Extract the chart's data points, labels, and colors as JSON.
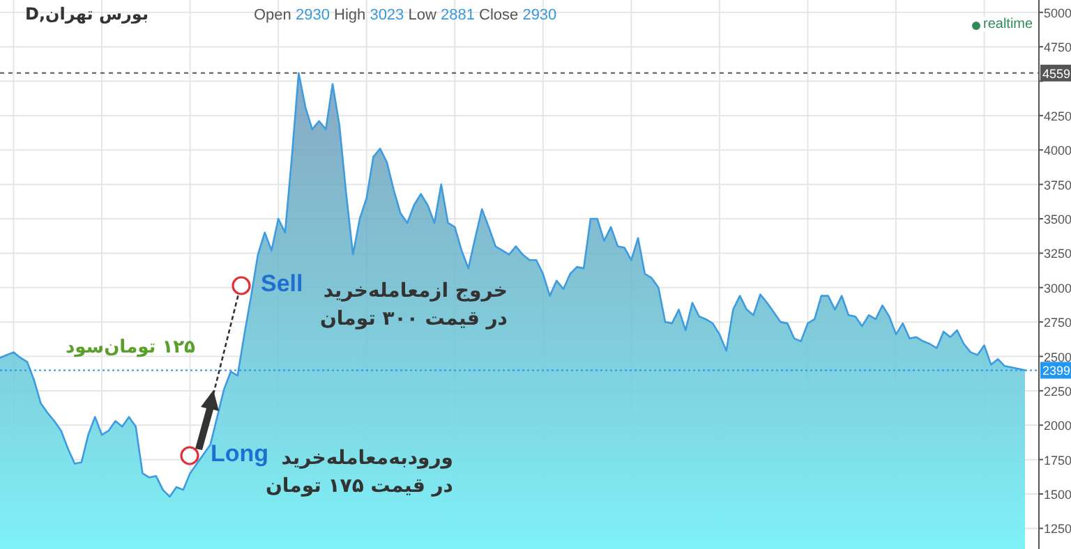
{
  "chart_data": {
    "type": "area",
    "title": "بورس تهران,D",
    "subtitle": "Open 2930 High 3023 Low 2881 Close 2930",
    "annotations": [
      "Long",
      "Sell",
      "ورود‌به‌معامله‌خرید",
      "در قیمت ۱۷۵ تومان",
      "خروج از‌معامله‌خرید",
      "در قیمت ۳۰۰ تومان",
      "۱۲۵ تومان‌سود",
      "realtime"
    ],
    "categories": [
      null,
      null,
      null,
      null,
      null,
      null,
      null,
      null,
      null,
      null,
      null,
      null,
      null,
      null,
      null,
      null,
      null,
      null,
      null,
      null,
      null,
      null,
      null,
      null,
      null,
      null,
      null,
      null,
      null,
      null,
      null,
      null,
      null,
      null,
      null,
      null,
      null,
      null,
      null,
      null,
      null,
      null,
      null,
      null,
      null,
      null,
      null,
      null,
      null,
      null,
      null,
      null,
      null,
      null,
      null,
      null,
      null,
      null,
      null,
      null,
      null,
      null,
      null,
      null,
      null,
      null,
      null,
      null,
      null,
      null,
      null,
      null,
      null,
      null,
      null,
      null,
      null,
      null,
      null,
      null,
      null,
      null,
      null,
      null,
      null,
      null,
      null,
      null,
      null,
      null,
      null,
      null,
      null,
      null,
      null,
      null,
      null,
      null,
      null,
      null,
      null,
      null,
      null,
      null,
      null,
      null,
      null,
      null,
      null,
      null,
      null,
      null,
      null,
      null,
      null,
      null,
      null,
      null,
      null,
      null,
      null,
      null,
      null,
      null,
      null,
      null,
      null,
      null,
      null,
      null,
      null,
      null,
      null,
      null,
      null,
      null,
      null,
      null,
      null,
      null,
      null,
      null,
      null,
      null,
      null,
      null,
      null,
      null,
      null,
      null,
      null,
      null
    ],
    "values": [
      2490,
      2510,
      2530,
      2490,
      2460,
      2330,
      2160,
      2090,
      2030,
      1960,
      1830,
      1720,
      1730,
      1930,
      2060,
      1930,
      1960,
      2030,
      1990,
      2060,
      1990,
      1650,
      1620,
      1630,
      1530,
      1480,
      1550,
      1530,
      1650,
      1720,
      1790,
      1860,
      2060,
      2260,
      2390,
      2360,
      2660,
      2940,
      3240,
      3400,
      3270,
      3500,
      3400,
      3950,
      4560,
      4310,
      4150,
      4210,
      4150,
      4480,
      4180,
      3680,
      3240,
      3500,
      3650,
      3950,
      4010,
      3910,
      3710,
      3540,
      3470,
      3600,
      3680,
      3600,
      3470,
      3750,
      3470,
      3440,
      3270,
      3140,
      3360,
      3570,
      3440,
      3300,
      3270,
      3240,
      3300,
      3240,
      3200,
      3200,
      3100,
      2940,
      3050,
      2990,
      3100,
      3150,
      3140,
      3500,
      3500,
      3340,
      3440,
      3300,
      3290,
      3200,
      3360,
      3100,
      3070,
      3000,
      2750,
      2740,
      2840,
      2690,
      2890,
      2790,
      2770,
      2740,
      2660,
      2540,
      2840,
      2940,
      2840,
      2800,
      2950,
      2890,
      2820,
      2750,
      2740,
      2630,
      2610,
      2740,
      2770,
      2940,
      2940,
      2840,
      2940,
      2800,
      2790,
      2720,
      2800,
      2770,
      2870,
      2790,
      2660,
      2740,
      2630,
      2640,
      2610,
      2590,
      2560,
      2680,
      2640,
      2690,
      2590,
      2530,
      2510,
      2580,
      2440,
      2480,
      2430,
      2420,
      2410,
      2399
    ],
    "color": "#3d9be0",
    "ylim": [
      1100,
      5090
    ],
    "yticks": [
      1250,
      1500,
      1750,
      2000,
      2250,
      2500,
      2750,
      3000,
      3250,
      3500,
      3750,
      4000,
      4250,
      {
        "value": 4500,
        "label": null
      },
      4750,
      5000
    ],
    "tick_labels": "y",
    "grid": true,
    "ref_lines": [
      {
        "axis": "y",
        "value": 2399,
        "label": "2399",
        "color": "#2196f3",
        "line_style": "dotted"
      },
      {
        "axis": "y",
        "value": 4559,
        "label": "4559",
        "color": "#555555",
        "line_style": "dashed"
      }
    ]
  }
}
